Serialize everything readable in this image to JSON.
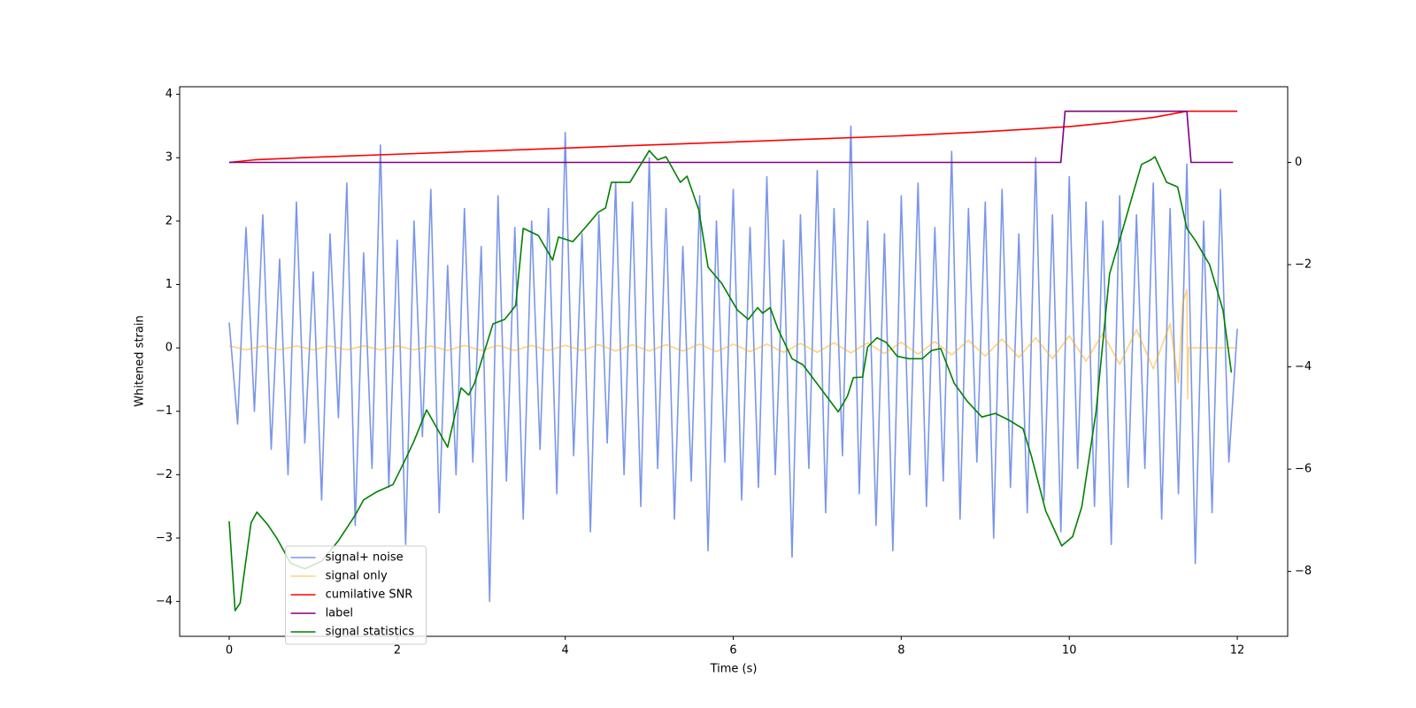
{
  "chart_data": {
    "type": "line",
    "xlabel": "Time (s)",
    "ylabel": "Whitened strain",
    "xlim": [
      -0.59,
      12.6
    ],
    "ylim": [
      -4.55,
      4.12
    ],
    "y2lim": [
      -9.27,
      1.48
    ],
    "xticks": [
      0,
      2,
      4,
      6,
      8,
      10,
      12
    ],
    "yticks": [
      {
        "value": -4,
        "label": "−4"
      },
      {
        "value": -3,
        "label": "−3"
      },
      {
        "value": -2,
        "label": "−2"
      },
      {
        "value": -1,
        "label": "−1"
      },
      0,
      1,
      2,
      3,
      4
    ],
    "y2ticks": [
      {
        "value": -8,
        "label": "−8"
      },
      {
        "value": -6,
        "label": "−6"
      },
      {
        "value": -4,
        "label": "−4"
      },
      {
        "value": -2,
        "label": "−2"
      },
      0
    ],
    "legend": "lower left",
    "series": [
      {
        "name": "signal+ noise",
        "color": "#4169e1",
        "alpha": 0.7,
        "x": [
          0,
          0.1,
          0.2,
          0.3,
          0.4,
          0.5,
          0.6,
          0.7,
          0.8,
          0.9,
          1,
          1.1,
          1.2,
          1.3,
          1.4,
          1.5,
          1.6,
          1.7,
          1.8,
          1.9,
          2,
          2.1,
          2.2,
          2.3,
          2.4,
          2.5,
          2.6,
          2.7,
          2.8,
          2.9,
          3,
          3.1,
          3.2,
          3.3,
          3.4,
          3.5,
          3.6,
          3.7,
          3.8,
          3.9,
          4,
          4.1,
          4.2,
          4.3,
          4.4,
          4.5,
          4.6,
          4.7,
          4.8,
          4.9,
          5,
          5.1,
          5.2,
          5.3,
          5.4,
          5.5,
          5.6,
          5.7,
          5.8,
          5.9,
          6,
          6.1,
          6.2,
          6.3,
          6.4,
          6.5,
          6.6,
          6.7,
          6.8,
          6.9,
          7,
          7.1,
          7.2,
          7.3,
          7.4,
          7.5,
          7.6,
          7.7,
          7.8,
          7.9,
          8,
          8.1,
          8.2,
          8.3,
          8.4,
          8.5,
          8.6,
          8.7,
          8.8,
          8.9,
          9,
          9.1,
          9.2,
          9.3,
          9.4,
          9.5,
          9.6,
          9.7,
          9.8,
          9.9,
          10,
          10.1,
          10.2,
          10.3,
          10.4,
          10.5,
          10.6,
          10.7,
          10.8,
          10.9,
          11,
          11.1,
          11.2,
          11.3,
          11.4,
          11.5,
          11.6,
          11.7,
          11.8,
          11.9,
          12
        ],
        "values": [
          0.4,
          -1.2,
          1.9,
          -1.0,
          2.1,
          -1.6,
          1.4,
          -2.0,
          2.3,
          -1.5,
          1.2,
          -2.4,
          1.8,
          -1.1,
          2.6,
          -2.8,
          1.5,
          -1.9,
          3.2,
          -2.2,
          1.7,
          -3.1,
          2.0,
          -1.4,
          2.5,
          -2.6,
          1.3,
          -2.0,
          2.2,
          -1.8,
          1.6,
          -4.0,
          2.4,
          -2.1,
          1.9,
          -2.7,
          2.0,
          -1.6,
          2.2,
          -2.3,
          3.4,
          -1.7,
          1.8,
          -2.9,
          2.1,
          -1.5,
          2.6,
          -2.0,
          2.3,
          -2.5,
          3.0,
          -1.9,
          2.2,
          -2.7,
          1.6,
          -2.1,
          2.4,
          -3.2,
          2.0,
          -1.8,
          2.5,
          -2.4,
          1.9,
          -2.2,
          2.7,
          -2.0,
          1.7,
          -3.3,
          2.1,
          -1.9,
          2.8,
          -2.6,
          2.2,
          -1.7,
          3.5,
          -2.3,
          2.0,
          -2.8,
          1.8,
          -3.2,
          2.4,
          -2.0,
          2.6,
          -2.5,
          1.9,
          -2.1,
          3.1,
          -2.7,
          2.2,
          -1.8,
          2.3,
          -3.0,
          2.5,
          -2.2,
          1.8,
          -2.6,
          3.0,
          -2.4,
          2.1,
          -2.9,
          2.7,
          -1.9,
          2.3,
          -2.5,
          2.0,
          -3.1,
          2.4,
          -2.2,
          2.1,
          -1.9,
          2.6,
          -2.7,
          2.2,
          -2.3,
          2.9,
          -3.4,
          2.0,
          -2.6,
          2.5,
          -1.8,
          0.3
        ]
      },
      {
        "name": "signal only",
        "color": "#ffa500",
        "alpha": 0.5,
        "x": [
          0,
          0.2,
          0.4,
          0.6,
          0.8,
          1,
          1.2,
          1.4,
          1.6,
          1.8,
          2,
          2.2,
          2.4,
          2.6,
          2.8,
          3,
          3.2,
          3.4,
          3.6,
          3.8,
          4,
          4.2,
          4.4,
          4.6,
          4.8,
          5,
          5.2,
          5.4,
          5.6,
          5.8,
          6,
          6.2,
          6.4,
          6.6,
          6.8,
          7,
          7.2,
          7.4,
          7.6,
          7.8,
          8,
          8.2,
          8.4,
          8.6,
          8.8,
          9,
          9.2,
          9.4,
          9.6,
          9.8,
          10,
          10.2,
          10.4,
          10.6,
          10.8,
          11,
          11.2,
          11.3,
          11.35,
          11.4,
          11.41,
          11.42,
          12
        ],
        "values": [
          0.03,
          -0.03,
          0.03,
          -0.03,
          0.03,
          -0.03,
          0.03,
          -0.03,
          0.03,
          -0.03,
          0.03,
          -0.03,
          0.03,
          -0.04,
          0.04,
          -0.04,
          0.04,
          -0.04,
          0.04,
          -0.04,
          0.04,
          -0.04,
          0.05,
          -0.05,
          0.05,
          -0.05,
          0.05,
          -0.05,
          0.06,
          -0.06,
          0.06,
          -0.06,
          0.06,
          -0.07,
          0.07,
          -0.07,
          0.08,
          -0.08,
          0.08,
          -0.09,
          0.09,
          -0.1,
          0.1,
          -0.11,
          0.12,
          -0.13,
          0.14,
          -0.15,
          0.16,
          -0.17,
          0.19,
          -0.21,
          0.23,
          -0.26,
          0.29,
          -0.33,
          0.38,
          -0.55,
          0.7,
          0.92,
          -0.8,
          0,
          0
        ]
      },
      {
        "name": "cumilative SNR",
        "color": "#ff0000",
        "axis": "y2",
        "x": [
          0,
          0.3,
          1,
          2,
          3,
          4,
          5,
          6,
          7,
          8,
          9,
          10,
          10.5,
          11,
          11.4,
          12
        ],
        "values": [
          0,
          0.05,
          0.1,
          0.16,
          0.22,
          0.28,
          0.34,
          0.4,
          0.46,
          0.52,
          0.6,
          0.7,
          0.78,
          0.88,
          1.0,
          1.0
        ]
      },
      {
        "name": "label",
        "color": "#800080",
        "axis": "y2",
        "x": [
          0,
          9.9,
          9.95,
          11.4,
          11.45,
          11.95
        ],
        "values": [
          0,
          0,
          1,
          1,
          0,
          0
        ]
      },
      {
        "name": "signal statistics",
        "color": "#008000",
        "axis": "y2",
        "x": [
          0,
          0.07,
          0.13,
          0.26,
          0.33,
          0.46,
          0.57,
          0.73,
          0.9,
          1.1,
          1.3,
          1.5,
          1.6,
          1.75,
          1.95,
          2.1,
          2.2,
          2.35,
          2.6,
          2.76,
          2.85,
          2.92,
          3.14,
          3.28,
          3.41,
          3.5,
          3.68,
          3.85,
          3.92,
          4.09,
          4.23,
          4.39,
          4.48,
          4.55,
          4.77,
          5.0,
          5.1,
          5.2,
          5.37,
          5.45,
          5.59,
          5.7,
          5.86,
          6.05,
          6.18,
          6.29,
          6.35,
          6.44,
          6.53,
          6.7,
          6.83,
          6.94,
          7.1,
          7.25,
          7.36,
          7.43,
          7.54,
          7.6,
          7.71,
          7.82,
          7.95,
          8.09,
          8.25,
          8.36,
          8.47,
          8.63,
          8.79,
          8.96,
          9.12,
          9.28,
          9.45,
          9.55,
          9.72,
          9.91,
          10.04,
          10.15,
          10.32,
          10.48,
          10.64,
          10.75,
          10.86,
          10.97,
          11.02,
          11.16,
          11.29,
          11.4,
          11.51,
          11.67,
          11.83,
          11.93
        ],
        "values": [
          -7.02,
          -8.77,
          -8.62,
          -7.05,
          -6.84,
          -7.09,
          -7.36,
          -7.84,
          -7.95,
          -7.8,
          -7.4,
          -6.9,
          -6.6,
          -6.45,
          -6.3,
          -5.8,
          -5.45,
          -4.84,
          -5.57,
          -4.41,
          -4.55,
          -4.32,
          -3.16,
          -3.07,
          -2.8,
          -1.29,
          -1.43,
          -1.91,
          -1.46,
          -1.55,
          -1.29,
          -0.98,
          -0.89,
          -0.39,
          -0.39,
          0.23,
          0.05,
          0.11,
          -0.39,
          -0.27,
          -0.93,
          -2.05,
          -2.36,
          -2.89,
          -3.07,
          -2.84,
          -2.95,
          -2.84,
          -3.25,
          -3.84,
          -3.96,
          -4.2,
          -4.55,
          -4.88,
          -4.57,
          -4.21,
          -4.2,
          -3.61,
          -3.43,
          -3.52,
          -3.79,
          -3.84,
          -3.84,
          -3.68,
          -3.64,
          -4.32,
          -4.68,
          -4.98,
          -4.91,
          -5.04,
          -5.21,
          -5.75,
          -6.82,
          -7.5,
          -7.32,
          -6.73,
          -4.86,
          -2.18,
          -1.29,
          -0.66,
          -0.04,
          0.05,
          0.11,
          -0.39,
          -0.48,
          -1.29,
          -1.55,
          -2.0,
          -2.89,
          -4.11
        ]
      }
    ]
  }
}
